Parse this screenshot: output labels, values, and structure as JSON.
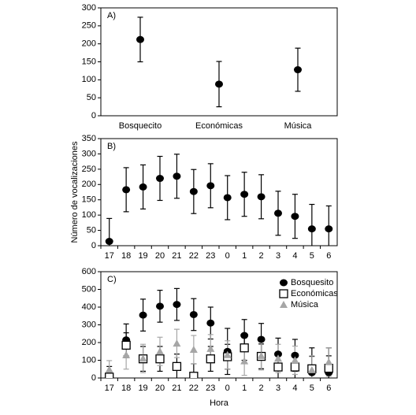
{
  "chart_data": [
    {
      "type": "errorbar",
      "panel_label": "A)",
      "categories": [
        "Bosquecito",
        "Económicas",
        "Música"
      ],
      "values": [
        212,
        88,
        128
      ],
      "errors": [
        62,
        63,
        60
      ],
      "color": "#000000",
      "ylim": [
        0,
        300
      ],
      "yticks": [
        0,
        50,
        100,
        150,
        200,
        250,
        300
      ]
    },
    {
      "type": "errorbar",
      "panel_label": "B)",
      "y_label": "Número de vocalizaciones",
      "categories": [
        "17",
        "18",
        "19",
        "20",
        "21",
        "22",
        "23",
        "0",
        "1",
        "2",
        "3",
        "4",
        "5",
        "6"
      ],
      "values": [
        14,
        183,
        192,
        220,
        227,
        177,
        196,
        157,
        168,
        160,
        106,
        96,
        55,
        55
      ],
      "errors": [
        75,
        72,
        72,
        72,
        72,
        72,
        72,
        72,
        72,
        72,
        72,
        72,
        80,
        75
      ],
      "color": "#000000",
      "ylim": [
        0,
        350
      ],
      "yticks": [
        0,
        50,
        100,
        150,
        200,
        250,
        300,
        350
      ]
    },
    {
      "type": "errorbar",
      "panel_label": "C)",
      "x_label": "Hora",
      "categories": [
        "17",
        "18",
        "19",
        "20",
        "21",
        "22",
        "23",
        "0",
        "1",
        "2",
        "3",
        "4",
        "5",
        "6"
      ],
      "series": [
        {
          "name": "Bosquesito",
          "color": "#000000",
          "marker": "circle",
          "values": [
            10,
            215,
            355,
            405,
            415,
            358,
            310,
            150,
            240,
            218,
            135,
            128,
            30,
            30
          ],
          "errors": [
            20,
            90,
            90,
            90,
            90,
            90,
            90,
            130,
            90,
            90,
            90,
            90,
            140,
            140
          ]
        },
        {
          "name": "Económicas",
          "color": "#ffffff",
          "marker": "square",
          "values": [
            5,
            185,
            108,
            108,
            65,
            10,
            108,
            120,
            170,
            122,
            62,
            62,
            52,
            55
          ],
          "errors": [
            60,
            70,
            70,
            70,
            70,
            70,
            70,
            70,
            70,
            70,
            70,
            70,
            70,
            70
          ]
        },
        {
          "name": "Música",
          "color": "#a6a6a6",
          "marker": "triangle",
          "values": [
            48,
            130,
            110,
            150,
            195,
            160,
            165,
            130,
            95,
            125,
            110,
            100,
            45,
            90
          ],
          "errors": [
            50,
            80,
            80,
            80,
            80,
            80,
            80,
            80,
            80,
            80,
            80,
            80,
            80,
            80
          ]
        }
      ],
      "legend": "upper right",
      "ylim": [
        0,
        600
      ],
      "yticks": [
        0,
        100,
        200,
        300,
        400,
        500,
        600
      ]
    }
  ]
}
